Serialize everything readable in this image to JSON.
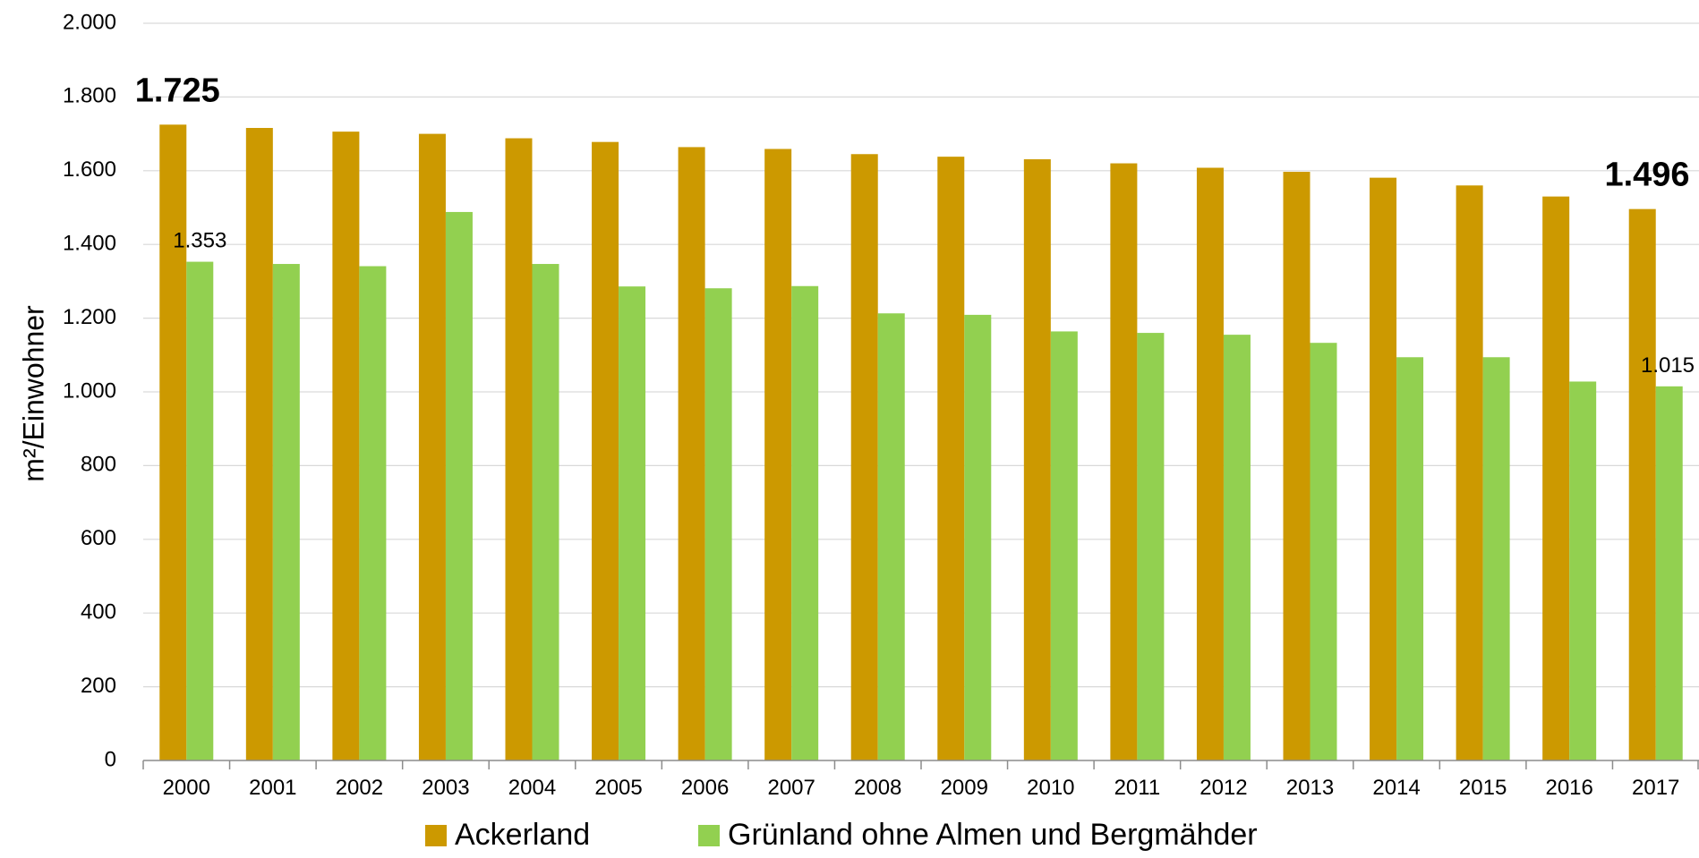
{
  "chart_data": {
    "type": "bar",
    "title": "",
    "xlabel": "",
    "ylabel": "m²/Einwohner",
    "ylim": [
      0,
      2000
    ],
    "ytick_values": [
      0,
      200,
      400,
      600,
      800,
      1000,
      1200,
      1400,
      1600,
      1800,
      2000
    ],
    "ytick_labels": [
      "0",
      "200",
      "400",
      "600",
      "800",
      "1.000",
      "1.200",
      "1.400",
      "1.600",
      "1.800",
      "2.000"
    ],
    "grid": true,
    "legend_position": "bottom",
    "categories": [
      "2000",
      "2001",
      "2002",
      "2003",
      "2004",
      "2005",
      "2006",
      "2007",
      "2008",
      "2009",
      "2010",
      "2011",
      "2012",
      "2013",
      "2014",
      "2015",
      "2016",
      "2017"
    ],
    "series": [
      {
        "name": "Ackerland",
        "color": "#CC9900",
        "values": [
          1725,
          1716,
          1706,
          1700,
          1688,
          1678,
          1664,
          1659,
          1645,
          1638,
          1631,
          1620,
          1608,
          1597,
          1581,
          1560,
          1530,
          1496
        ]
      },
      {
        "name": "Grünland ohne Almen und Bergmähder",
        "color": "#92D050",
        "values": [
          1353,
          1347,
          1341,
          1488,
          1347,
          1286,
          1281,
          1287,
          1213,
          1209,
          1164,
          1160,
          1155,
          1133,
          1094,
          1094,
          1028,
          1015
        ]
      }
    ],
    "data_labels": [
      {
        "series": 0,
        "index": 0,
        "text": "1.725",
        "bold": true
      },
      {
        "series": 0,
        "index": 17,
        "text": "1.496",
        "bold": true
      },
      {
        "series": 1,
        "index": 0,
        "text": "1.353",
        "bold": false
      },
      {
        "series": 1,
        "index": 17,
        "text": "1.015",
        "bold": false
      }
    ]
  }
}
